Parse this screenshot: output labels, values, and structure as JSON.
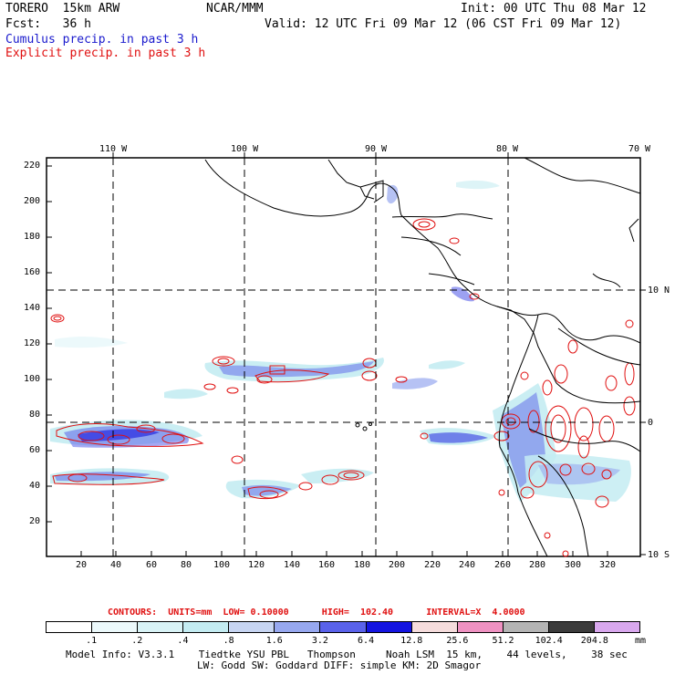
{
  "header": {
    "model": "TORERO  15km ARW",
    "org": "NCAR/MMM",
    "init": "Init: 00 UTC Thu 08 Mar 12",
    "fcst": "Fcst:   36 h",
    "valid": "Valid: 12 UTC Fri 09 Mar 12 (06 CST Fri 09 Mar 12)",
    "field1": "Cumulus precip. in past 3 h",
    "field2": "Explicit precip. in past 3 h"
  },
  "axes": {
    "top_lon_labels": [
      "110 W",
      "100 W",
      "90 W",
      "80 W",
      "70 W"
    ],
    "right_lat_labels": [
      "10 N",
      "0",
      "10 S"
    ],
    "left_y_labels": [
      "220",
      "200",
      "180",
      "160",
      "140",
      "120",
      "100",
      "80",
      "60",
      "40",
      "20"
    ],
    "bottom_x_labels": [
      "20",
      "40",
      "60",
      "80",
      "100",
      "120",
      "140",
      "160",
      "180",
      "200",
      "220",
      "240",
      "260",
      "280",
      "300",
      "320"
    ]
  },
  "contours_line": "CONTOURS:  UNITS=mm  LOW= 0.10000      HIGH=  102.40      INTERVAL=X  4.0000",
  "legend": {
    "colors": [
      "#ffffff",
      "#ecf9fb",
      "#d9f3f6",
      "#c4ecf2",
      "#c7d5f2",
      "#97a8ef",
      "#5a62ea",
      "#1414e0",
      "#f5dcdc",
      "#ef92c2",
      "#b4b4b4",
      "#3c3c3c",
      "#d9a8ee"
    ],
    "labels": [
      ".1",
      ".2",
      ".4",
      ".8",
      "1.6",
      "3.2",
      "6.4",
      "12.8",
      "25.6",
      "51.2",
      "102.4",
      "204.8"
    ],
    "unit": "mm"
  },
  "footer": {
    "line1": "Model Info: V3.3.1    Tiedtke YSU PBL   Thompson     Noah LSM  15 km,    44 levels,    38 sec",
    "line2": "LW: Godd SW: Goddard DIFF: simple KM: 2D Smagor"
  }
}
